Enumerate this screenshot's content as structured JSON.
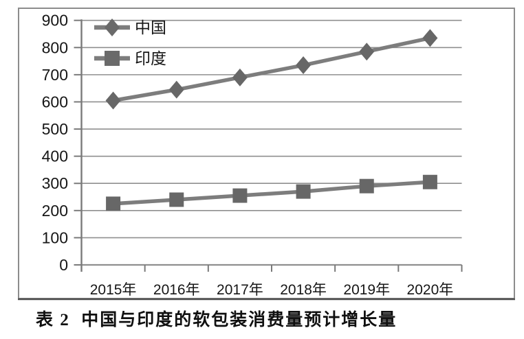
{
  "figure": {
    "caption": "表 2  中国与印度的软包装消费量预计增长量"
  },
  "chart_data": {
    "type": "line",
    "title": "",
    "caption": "表 2 中国与印度的软包装消费量预计增长量",
    "categories": [
      "2015年",
      "2016年",
      "2017年",
      "2018年",
      "2019年",
      "2020年"
    ],
    "series": [
      {
        "name": "中国",
        "marker": "diamond",
        "values": [
          605,
          645,
          690,
          735,
          785,
          835
        ]
      },
      {
        "name": "印度",
        "marker": "square",
        "values": [
          225,
          240,
          255,
          270,
          290,
          305
        ]
      }
    ],
    "xlabel": "",
    "ylabel": "",
    "ylim": [
      0,
      900
    ],
    "yticks": [
      0,
      100,
      200,
      300,
      400,
      500,
      600,
      700,
      800,
      900
    ],
    "grid": true,
    "legend_position": "top-left",
    "colors": {
      "line": "#7d7d7d",
      "marker": "#676767",
      "grid": "#8f8f8f",
      "axis": "#7a7a7a",
      "text": "#161616",
      "border": "#8c8c8c",
      "border_bottom": "#4f4f4f"
    }
  }
}
